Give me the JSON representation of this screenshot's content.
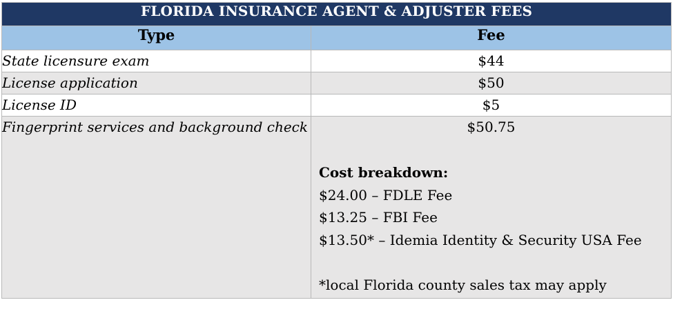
{
  "table": {
    "title": "FLORIDA INSURANCE AGENT & ADJUSTER FEES",
    "headers": {
      "type": "Type",
      "fee": "Fee"
    },
    "rows": [
      {
        "type": "State licensure exam",
        "fee": "$44"
      },
      {
        "type": "License application",
        "fee": "$50"
      },
      {
        "type": "License ID",
        "fee": "$5"
      },
      {
        "type": "Fingerprint services and background check",
        "fee": "$50.75"
      }
    ],
    "breakdown": {
      "heading": "Cost breakdown:",
      "items": [
        "$24.00 – FDLE Fee",
        "$13.25 – FBI Fee",
        "$13.50* – Idemia Identity & Security USA Fee"
      ],
      "note": "*local Florida county sales tax may apply"
    }
  },
  "colors": {
    "title_bg": "#1f3864",
    "header_bg": "#9dc3e6",
    "row_gray": "#e7e6e6",
    "row_white": "#ffffff"
  }
}
